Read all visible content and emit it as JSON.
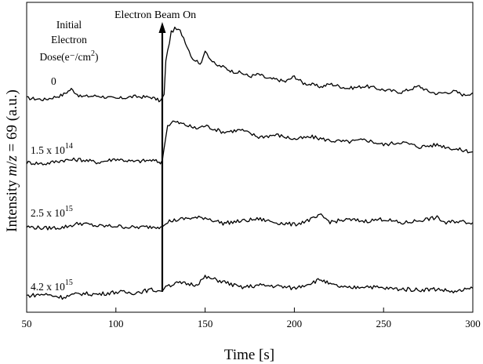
{
  "chart_data": {
    "type": "line",
    "xlabel": "Time [s]",
    "ylabel": {
      "prefix": "Intensity ",
      "italic_m": "m",
      "mid": "/",
      "italic_z": "z",
      "suffix": " = 69 (a.u.)"
    },
    "xlim": [
      50,
      300
    ],
    "xticks": [
      "50",
      "100",
      "150",
      "200",
      "250",
      "300"
    ],
    "legend_title": [
      "Initial",
      "Electron",
      "Dose(e⁻/cm",
      "2",
      ")"
    ],
    "annotation": {
      "text": "Electron Beam On",
      "x": 126
    },
    "series": [
      {
        "name": "0",
        "label": "0",
        "baseline": 0.0,
        "jump_at": 126,
        "points": [
          [
            50,
            0.0
          ],
          [
            60,
            -0.2
          ],
          [
            70,
            0.4
          ],
          [
            75,
            1.2
          ],
          [
            80,
            0.2
          ],
          [
            90,
            0.3
          ],
          [
            100,
            -0.1
          ],
          [
            110,
            0.2
          ],
          [
            120,
            0.1
          ],
          [
            125,
            -0.4
          ],
          [
            127,
            0.5
          ],
          [
            128,
            5.0
          ],
          [
            131,
            8.8
          ],
          [
            133,
            9.3
          ],
          [
            136,
            9.0
          ],
          [
            138,
            8.1
          ],
          [
            140,
            6.9
          ],
          [
            143,
            5.3
          ],
          [
            148,
            4.6
          ],
          [
            150,
            6.5
          ],
          [
            153,
            5.2
          ],
          [
            156,
            4.4
          ],
          [
            160,
            4.2
          ],
          [
            165,
            3.6
          ],
          [
            170,
            3.4
          ],
          [
            175,
            2.9
          ],
          [
            180,
            3.2
          ],
          [
            185,
            2.6
          ],
          [
            190,
            2.5
          ],
          [
            195,
            2.2
          ],
          [
            200,
            2.9
          ],
          [
            205,
            2.0
          ],
          [
            210,
            1.8
          ],
          [
            215,
            1.5
          ],
          [
            220,
            1.9
          ],
          [
            225,
            1.6
          ],
          [
            230,
            1.3
          ],
          [
            240,
            1.6
          ],
          [
            250,
            1.1
          ],
          [
            260,
            0.8
          ],
          [
            270,
            1.6
          ],
          [
            275,
            0.9
          ],
          [
            280,
            0.6
          ],
          [
            290,
            0.9
          ],
          [
            295,
            0.4
          ],
          [
            300,
            0.7
          ]
        ]
      },
      {
        "name": "1.5 x 10^14",
        "label_base": "1.5 x 10",
        "label_exp": "14",
        "baseline": -0.5,
        "jump_at": 126,
        "points": [
          [
            50,
            0.0
          ],
          [
            60,
            -0.2
          ],
          [
            70,
            0.3
          ],
          [
            80,
            0.4
          ],
          [
            90,
            0.0
          ],
          [
            100,
            0.5
          ],
          [
            110,
            0.1
          ],
          [
            120,
            0.3
          ],
          [
            125,
            0.0
          ],
          [
            126,
            0.2
          ],
          [
            127,
            2.0
          ],
          [
            129,
            5.2
          ],
          [
            132,
            5.8
          ],
          [
            138,
            5.4
          ],
          [
            145,
            4.8
          ],
          [
            150,
            5.2
          ],
          [
            160,
            4.3
          ],
          [
            170,
            4.6
          ],
          [
            180,
            3.6
          ],
          [
            190,
            3.9
          ],
          [
            200,
            3.3
          ],
          [
            210,
            3.6
          ],
          [
            220,
            3.1
          ],
          [
            230,
            2.9
          ],
          [
            240,
            3.2
          ],
          [
            250,
            2.5
          ],
          [
            260,
            2.9
          ],
          [
            270,
            2.2
          ],
          [
            280,
            2.5
          ],
          [
            290,
            1.9
          ],
          [
            300,
            1.5
          ]
        ]
      },
      {
        "name": "2.5 x 10^15",
        "label_base": "2.5 x 10",
        "label_exp": "15",
        "baseline": 0.0,
        "jump_at": 126,
        "points": [
          [
            50,
            0.1
          ],
          [
            60,
            -0.1
          ],
          [
            70,
            0.0
          ],
          [
            80,
            0.6
          ],
          [
            90,
            0.2
          ],
          [
            100,
            0.2
          ],
          [
            110,
            0.0
          ],
          [
            120,
            0.1
          ],
          [
            126,
            0.1
          ],
          [
            130,
            0.9
          ],
          [
            140,
            1.3
          ],
          [
            150,
            1.4
          ],
          [
            160,
            0.6
          ],
          [
            170,
            0.9
          ],
          [
            180,
            1.2
          ],
          [
            190,
            0.7
          ],
          [
            200,
            0.4
          ],
          [
            210,
            1.2
          ],
          [
            215,
            1.7
          ],
          [
            220,
            0.8
          ],
          [
            230,
            1.1
          ],
          [
            240,
            0.9
          ],
          [
            250,
            1.2
          ],
          [
            260,
            0.6
          ],
          [
            270,
            1.0
          ],
          [
            280,
            1.4
          ],
          [
            285,
            0.6
          ],
          [
            290,
            0.9
          ],
          [
            300,
            0.7
          ]
        ]
      },
      {
        "name": "4.2 x 10^15",
        "label_base": "4.2 x 10",
        "label_exp": "15",
        "baseline": 0.0,
        "jump_at": 126,
        "points": [
          [
            50,
            0.0
          ],
          [
            60,
            0.2
          ],
          [
            70,
            -0.2
          ],
          [
            80,
            0.3
          ],
          [
            90,
            0.2
          ],
          [
            100,
            0.5
          ],
          [
            110,
            0.4
          ],
          [
            120,
            0.8
          ],
          [
            126,
            0.6
          ],
          [
            128,
            1.3
          ],
          [
            135,
            1.7
          ],
          [
            145,
            1.5
          ],
          [
            150,
            2.5
          ],
          [
            160,
            1.9
          ],
          [
            170,
            1.1
          ],
          [
            180,
            1.4
          ],
          [
            190,
            1.3
          ],
          [
            200,
            1.0
          ],
          [
            210,
            1.8
          ],
          [
            215,
            2.2
          ],
          [
            220,
            1.5
          ],
          [
            230,
            1.0
          ],
          [
            240,
            1.3
          ],
          [
            250,
            1.0
          ],
          [
            260,
            0.9
          ],
          [
            270,
            0.8
          ],
          [
            280,
            0.9
          ],
          [
            290,
            0.5
          ],
          [
            300,
            1.0
          ]
        ]
      }
    ]
  }
}
